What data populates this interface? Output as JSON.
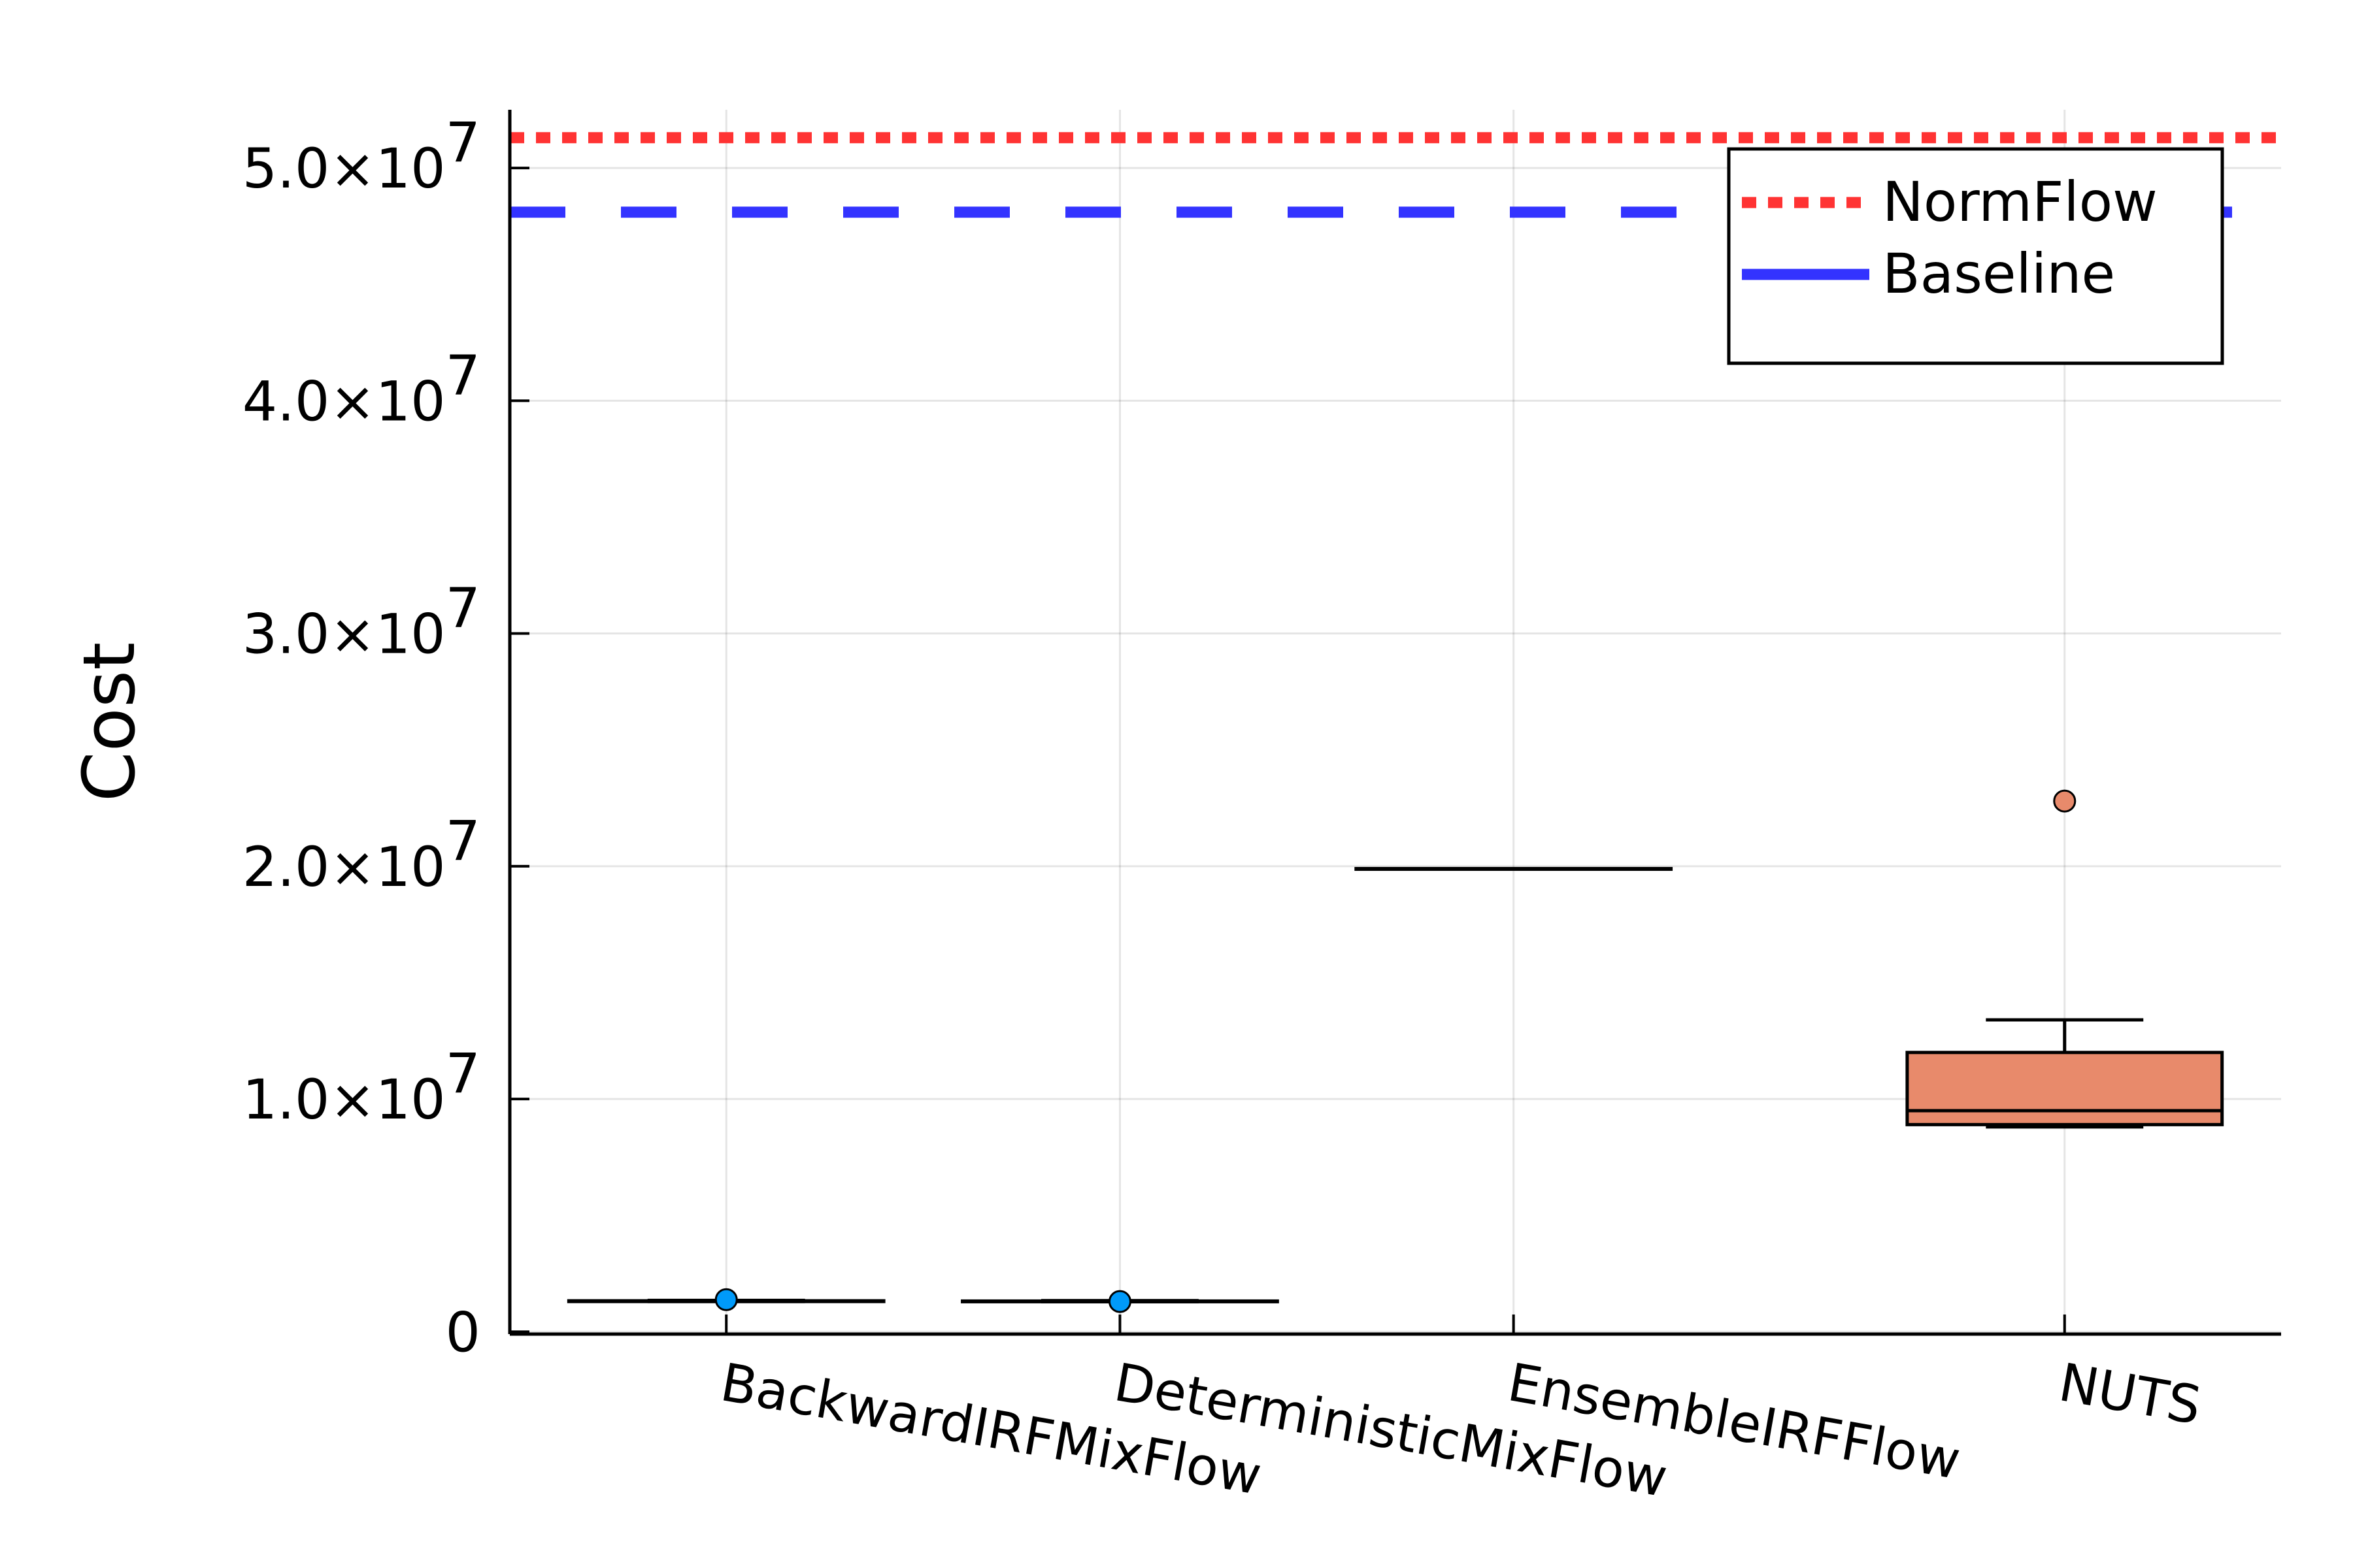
{
  "chart_data": {
    "type": "box",
    "ylabel": "Cost",
    "ylim": [
      -100000,
      52500000
    ],
    "yticks": [
      {
        "value": 0,
        "mantissa": "0",
        "exponent": ""
      },
      {
        "value": 10000000,
        "mantissa": "1.0×10",
        "exponent": "7"
      },
      {
        "value": 20000000,
        "mantissa": "2.0×10",
        "exponent": "7"
      },
      {
        "value": 30000000,
        "mantissa": "3.0×10",
        "exponent": "7"
      },
      {
        "value": 40000000,
        "mantissa": "4.0×10",
        "exponent": "7"
      },
      {
        "value": 50000000,
        "mantissa": "5.0×10",
        "exponent": "7"
      }
    ],
    "categories": [
      "BackwardIRFMixFlow",
      "DeterministicMixFlow",
      "EnsembleIRFFlow",
      "NUTS"
    ],
    "category_positions": [
      1,
      2,
      3,
      4.4
    ],
    "xlim": [
      0.45,
      4.95
    ],
    "boxes": [
      {
        "category": "BackwardIRFMixFlow",
        "color": "#009AFA",
        "whisker_low": 1300000,
        "q1": 1300000,
        "median": 1320000,
        "q3": 1330000,
        "whisker_high": 1350000,
        "outliers": [
          1380000
        ]
      },
      {
        "category": "DeterministicMixFlow",
        "color": "#009AFA",
        "whisker_low": 1290000,
        "q1": 1300000,
        "median": 1310000,
        "q3": 1320000,
        "whisker_high": 1340000,
        "outliers": [
          1300000
        ]
      },
      {
        "category": "EnsembleIRFFlow",
        "color": "#3DA44D",
        "whisker_low": 19900000,
        "q1": 19900000,
        "median": 19900000,
        "q3": 19900000,
        "whisker_high": 19900000,
        "outliers": []
      },
      {
        "category": "NUTS",
        "color": "#E88A6B",
        "whisker_low": 8800000,
        "q1": 8900000,
        "median": 9500000,
        "q3": 12000000,
        "whisker_high": 13400000,
        "outliers": [
          22800000
        ]
      }
    ],
    "reference_lines": [
      {
        "name": "NormFlow",
        "value": 51300000,
        "color": "#FF3333",
        "style": "dotted"
      },
      {
        "name": "Baseline",
        "value": 48100000,
        "color": "#3333FF",
        "style": "dashed"
      }
    ],
    "grid": true,
    "legend_position": "top-right"
  }
}
